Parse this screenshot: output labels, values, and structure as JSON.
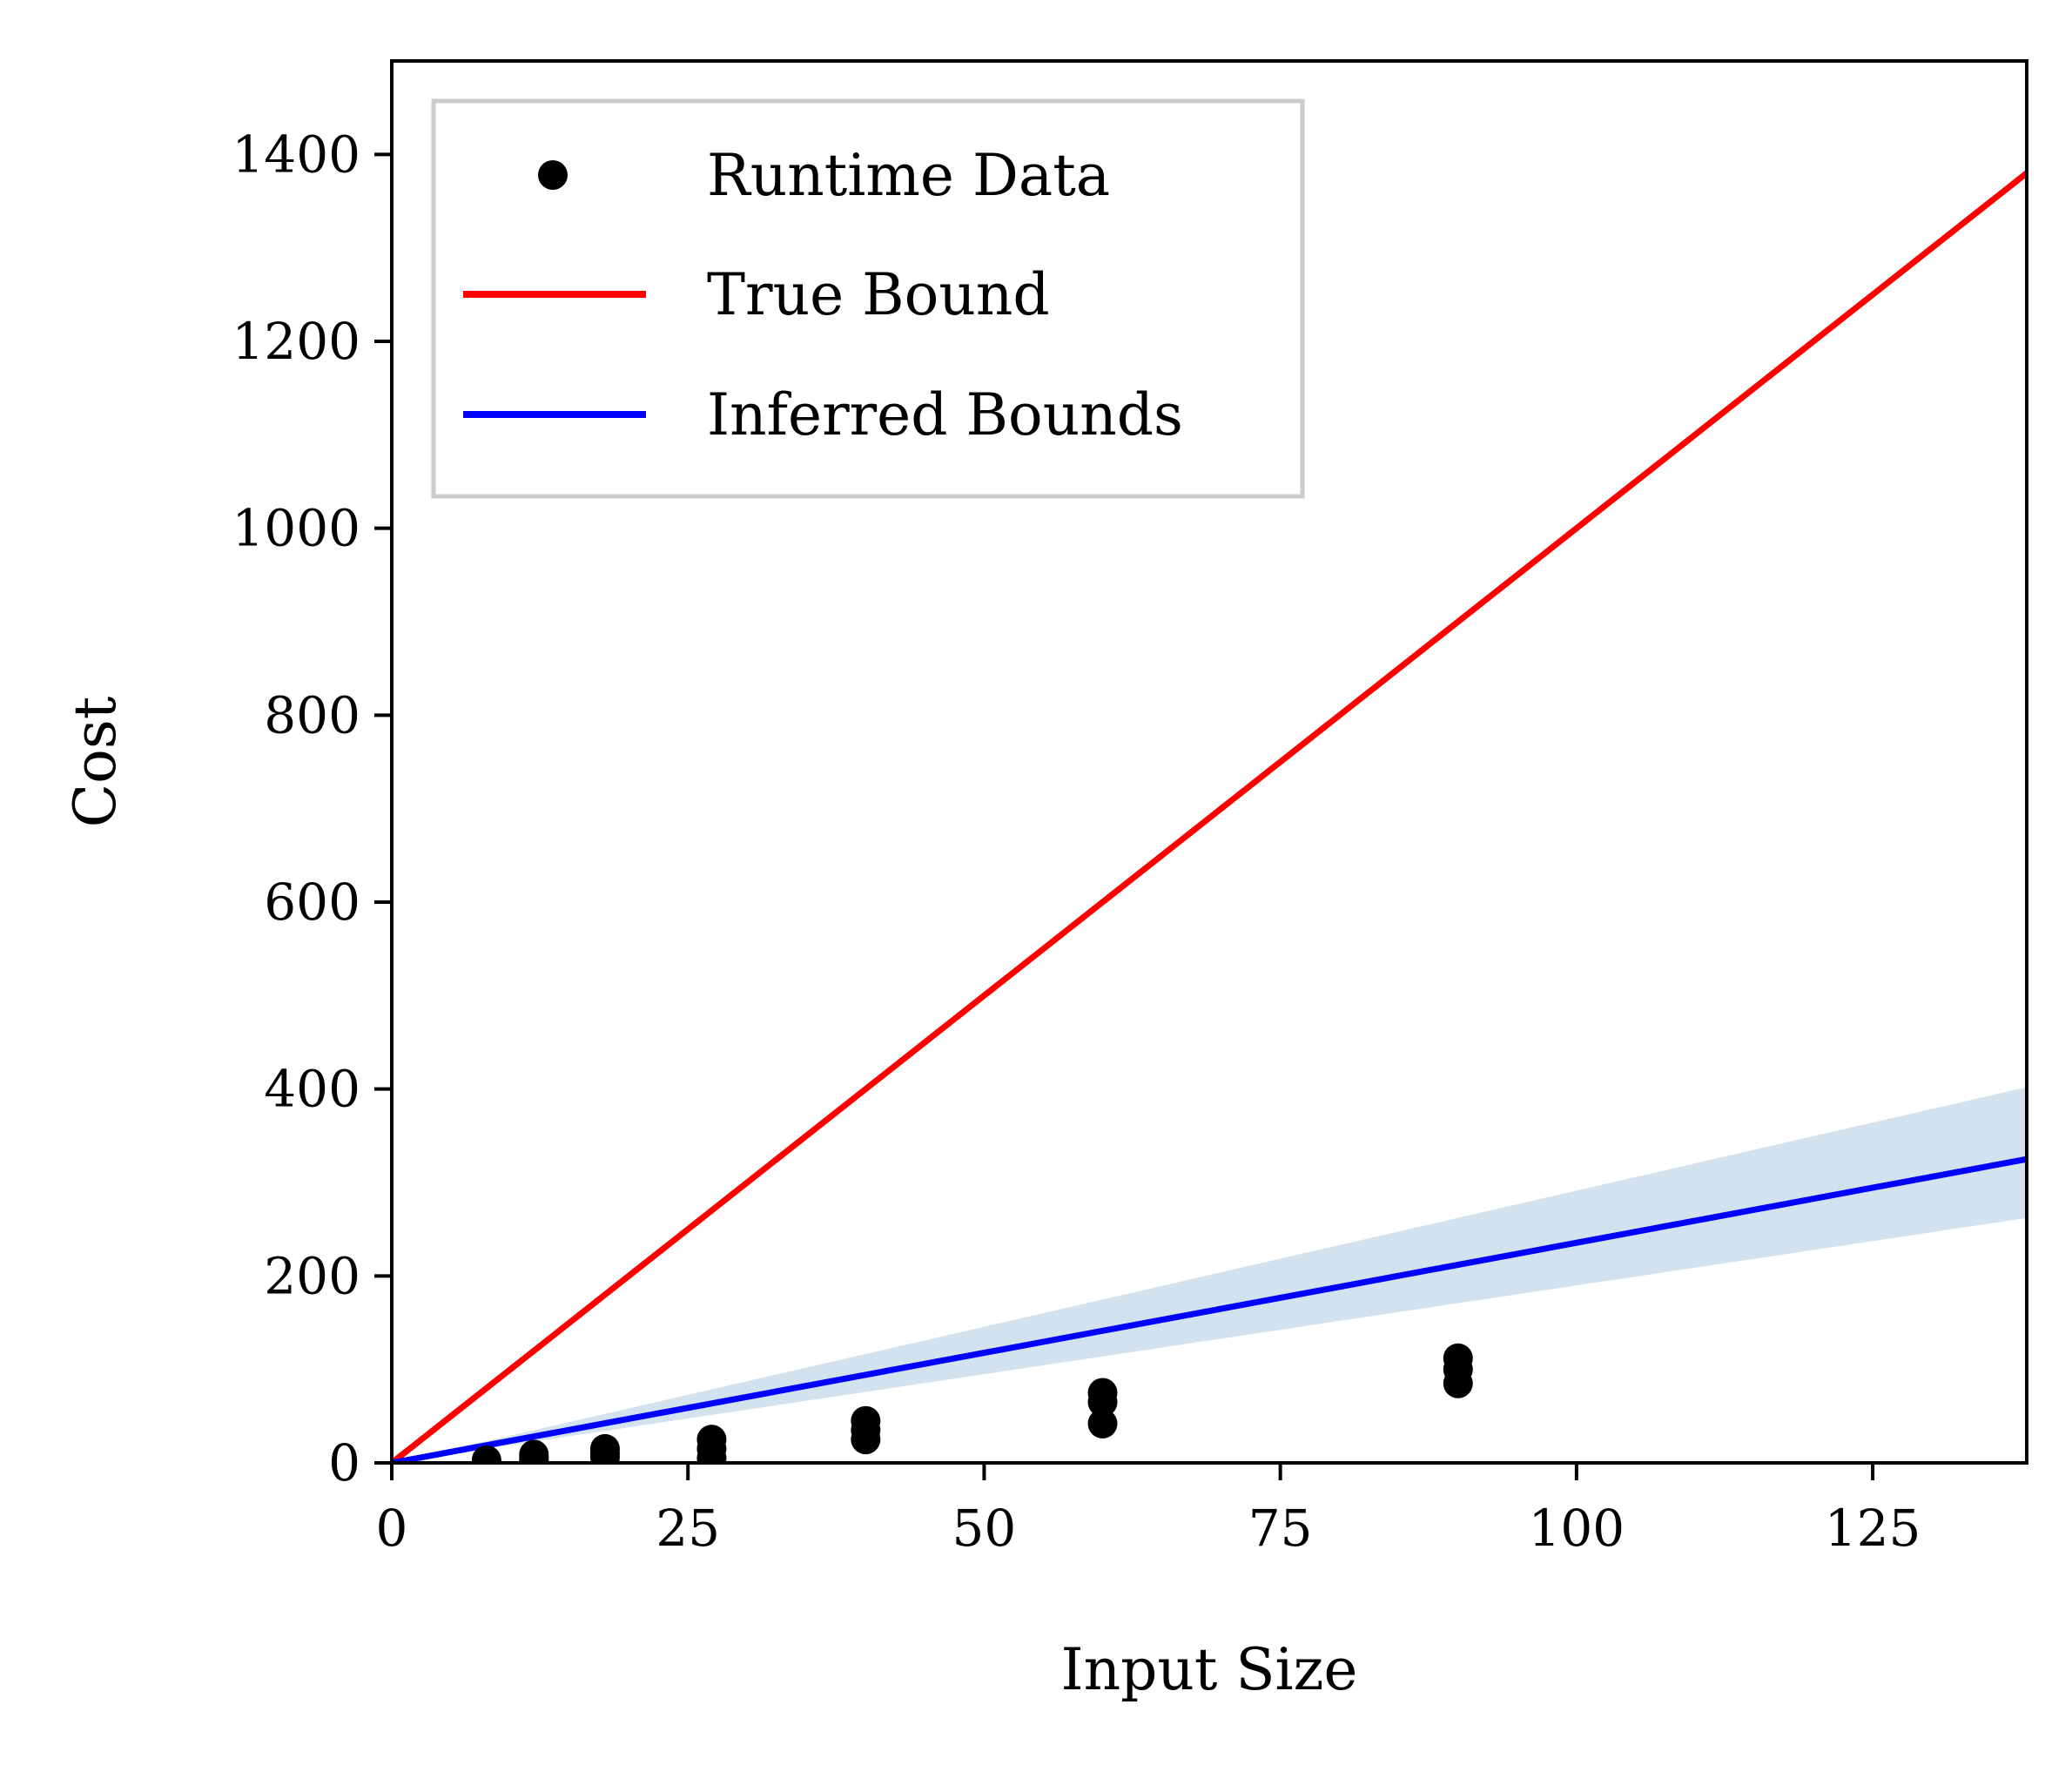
{
  "chart_data": {
    "type": "scatter",
    "xlabel": "Input Size",
    "ylabel": "Cost",
    "xlim": [
      0,
      138
    ],
    "ylim": [
      0,
      1500
    ],
    "xticks": [
      0,
      25,
      50,
      75,
      100,
      125
    ],
    "yticks": [
      0,
      200,
      400,
      600,
      800,
      1000,
      1200,
      1400
    ],
    "grid": false,
    "legend_position": "upper left",
    "legend": [
      {
        "key": "runtime",
        "label": "Runtime Data",
        "marker": "dot",
        "color": "#000000"
      },
      {
        "key": "true_bound",
        "label": "True Bound",
        "marker": "line",
        "color": "#ff0000"
      },
      {
        "key": "inferred",
        "label": "Inferred Bounds",
        "marker": "line",
        "color": "#0000ff"
      }
    ],
    "series": [
      {
        "name": "Runtime Data",
        "kind": "scatter",
        "color": "#000000",
        "points": [
          {
            "x": 8,
            "y": 1
          },
          {
            "x": 8,
            "y": 3
          },
          {
            "x": 12,
            "y": 3
          },
          {
            "x": 12,
            "y": 6
          },
          {
            "x": 12,
            "y": 9
          },
          {
            "x": 18,
            "y": 6
          },
          {
            "x": 18,
            "y": 10
          },
          {
            "x": 18,
            "y": 15
          },
          {
            "x": 27,
            "y": 5
          },
          {
            "x": 27,
            "y": 15
          },
          {
            "x": 27,
            "y": 25
          },
          {
            "x": 40,
            "y": 25
          },
          {
            "x": 40,
            "y": 35
          },
          {
            "x": 40,
            "y": 45
          },
          {
            "x": 60,
            "y": 42
          },
          {
            "x": 60,
            "y": 65
          },
          {
            "x": 60,
            "y": 75
          },
          {
            "x": 90,
            "y": 85
          },
          {
            "x": 90,
            "y": 100
          },
          {
            "x": 90,
            "y": 112
          }
        ]
      },
      {
        "name": "True Bound",
        "kind": "line",
        "color": "#ff0000",
        "x": [
          0,
          138
        ],
        "y": [
          0,
          1380
        ]
      },
      {
        "name": "Inferred Bounds",
        "kind": "line",
        "color": "#0000ff",
        "x": [
          0,
          138
        ],
        "y": [
          0,
          325
        ],
        "band": {
          "color": "#d3e2ef",
          "x": [
            0,
            138
          ],
          "lower": [
            0,
            262
          ],
          "upper": [
            0,
            402
          ]
        }
      }
    ]
  }
}
